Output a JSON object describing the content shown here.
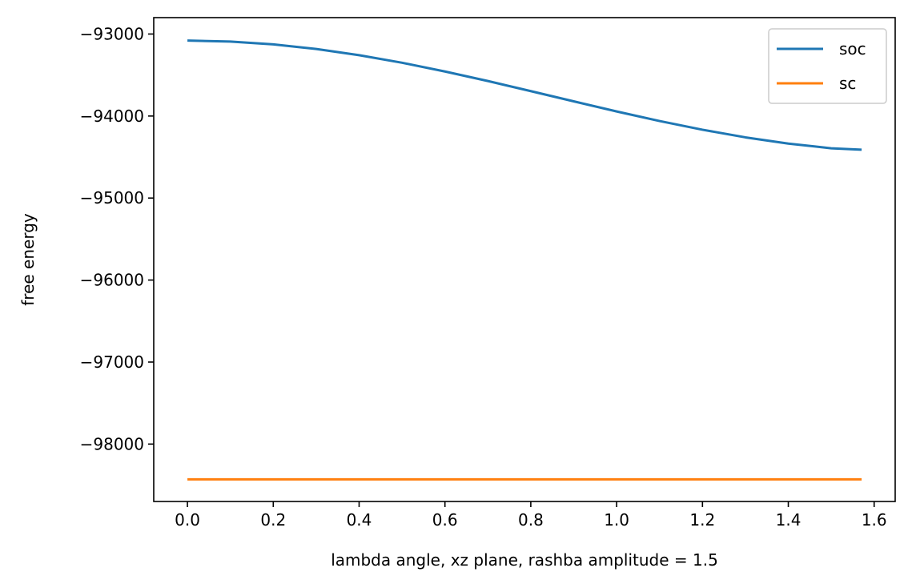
{
  "chart_data": {
    "type": "line",
    "title": "",
    "xlabel": "lambda angle, xz plane, rashba amplitude = 1.5",
    "ylabel": "free energy",
    "xlim": [
      -0.0785,
      1.649
    ],
    "ylim": [
      -98700,
      -92800
    ],
    "grid": false,
    "legend_position": "top-right",
    "x_ticks": [
      0.0,
      0.2,
      0.4,
      0.6,
      0.8,
      1.0,
      1.2,
      1.4,
      1.6
    ],
    "x_tick_labels": [
      "0.0",
      "0.2",
      "0.4",
      "0.6",
      "0.8",
      "1.0",
      "1.2",
      "1.4",
      "1.6"
    ],
    "y_ticks": [
      -93000,
      -94000,
      -95000,
      -96000,
      -97000,
      -98000
    ],
    "y_tick_labels": [
      "−93000",
      "−94000",
      "−95000",
      "−96000",
      "−97000",
      "−98000"
    ],
    "x": [
      0.0,
      0.1,
      0.2,
      0.3,
      0.4,
      0.5,
      0.6,
      0.7,
      0.8,
      0.9,
      1.0,
      1.1,
      1.2,
      1.3,
      1.4,
      1.5,
      1.5708
    ],
    "series": [
      {
        "name": "soc",
        "color": "#1f77b4",
        "values": [
          -93080,
          -93092,
          -93126,
          -93182,
          -93258,
          -93350,
          -93457,
          -93573,
          -93696,
          -93821,
          -93944,
          -94061,
          -94167,
          -94260,
          -94336,
          -94393,
          -94410
        ]
      },
      {
        "name": "sc",
        "color": "#ff7f0e",
        "values": [
          -98430,
          -98430,
          -98430,
          -98430,
          -98430,
          -98430,
          -98430,
          -98430,
          -98430,
          -98430,
          -98430,
          -98430,
          -98430,
          -98430,
          -98430,
          -98430,
          -98430
        ]
      }
    ]
  }
}
